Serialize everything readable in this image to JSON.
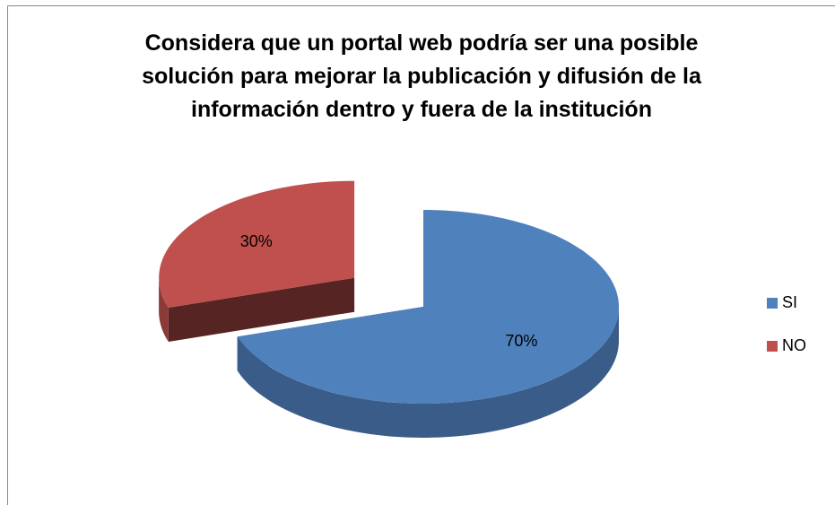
{
  "chart_data": {
    "type": "pie3d",
    "title": "Considera que un portal web podría ser una posible solución para mejorar la publicación y difusión  de la información dentro y fuera de la institución",
    "categories": [
      "SI",
      "NO"
    ],
    "values": [
      70,
      30
    ],
    "value_labels": [
      "70%",
      "30%"
    ],
    "colors": [
      "#4f81bd",
      "#c0504d"
    ],
    "legend": "right"
  }
}
